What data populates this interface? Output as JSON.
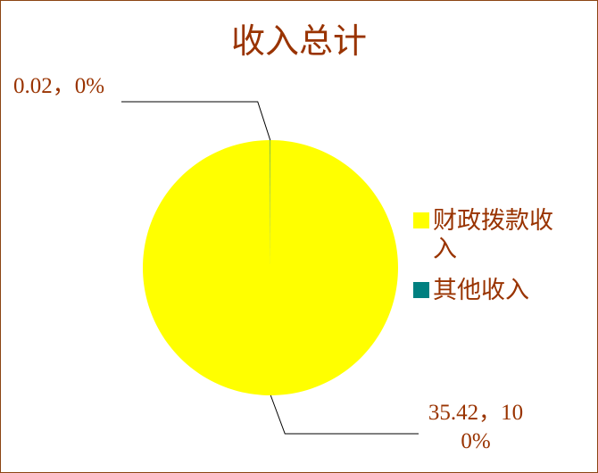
{
  "chart_data": {
    "type": "pie",
    "title": "收入总计",
    "categories": [
      "财政拨款收入",
      "其他收入"
    ],
    "values": [
      35.42,
      0.02
    ],
    "value_labels": [
      "35.42，100%",
      "0.02，0%"
    ],
    "colors": [
      "#ffff00",
      "#008080"
    ],
    "legend": "right"
  }
}
